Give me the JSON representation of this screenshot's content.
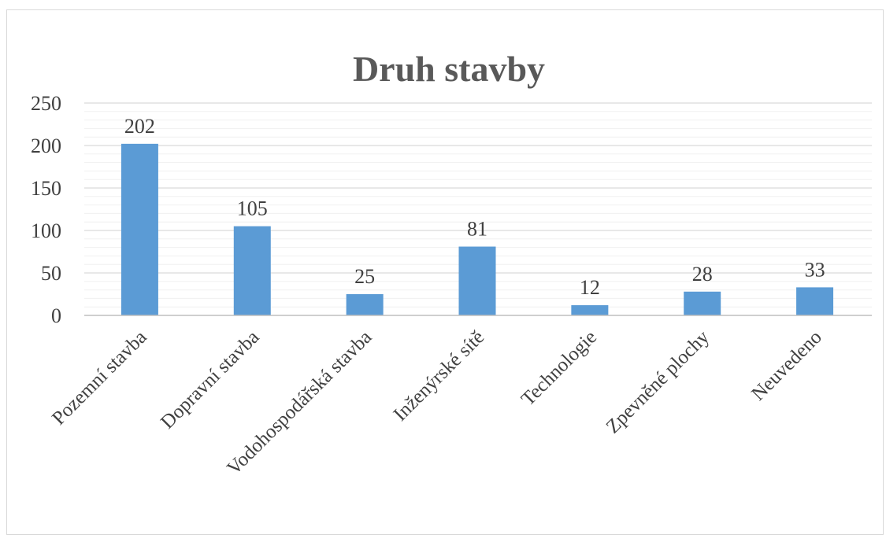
{
  "chart_data": {
    "type": "bar",
    "title": "Druh stavby",
    "xlabel": "",
    "ylabel": "",
    "categories": [
      "Pozemní stavba",
      "Dopravní stavba",
      "Vodohospodářská stavba",
      "Inženýrské sítě",
      "Technologie",
      "Zpevněné plochy",
      "Neuvedeno"
    ],
    "values": [
      202,
      105,
      25,
      81,
      12,
      28,
      33
    ],
    "ylim": [
      0,
      250
    ],
    "yticks": [
      0,
      50,
      100,
      150,
      200,
      250
    ],
    "grid": true,
    "legend": "none",
    "data_labels": true,
    "colors": {
      "bar": "#5b9bd5",
      "title": "#595959",
      "text": "#404040",
      "grid": "#d9d9d9",
      "minor_grid": "#f0f0f0",
      "axis": "#bfbfbf"
    }
  }
}
